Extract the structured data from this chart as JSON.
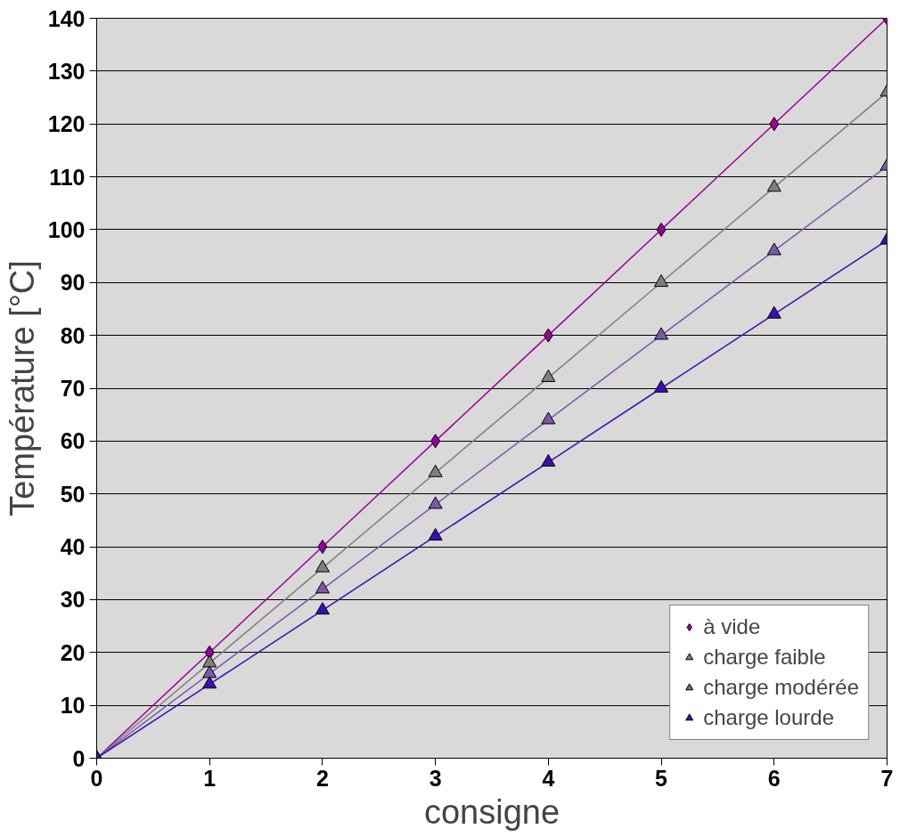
{
  "chart_data": {
    "type": "line",
    "xlabel": "consigne",
    "ylabel": "Température [°C]",
    "x": [
      0,
      1,
      2,
      3,
      4,
      5,
      6,
      7
    ],
    "series": [
      {
        "name": "à vide",
        "color": "#990099",
        "marker": "diamond",
        "values": [
          0,
          20,
          40,
          60,
          80,
          100,
          120,
          140
        ]
      },
      {
        "name": "charge faible",
        "color": "#7f7f7f",
        "marker": "triangle",
        "values": [
          0,
          18,
          36,
          54,
          72,
          90,
          108,
          126
        ]
      },
      {
        "name": "charge modérée",
        "color": "#7a5aa8",
        "marker": "triangle",
        "values": [
          0,
          16,
          32,
          48,
          64,
          80,
          96,
          112
        ]
      },
      {
        "name": "charge lourde",
        "color": "#3a10b0",
        "marker": "triangle",
        "values": [
          0,
          14,
          28,
          42,
          56,
          70,
          84,
          98
        ]
      }
    ],
    "xlim": [
      0,
      7
    ],
    "xticks": [
      0,
      1,
      2,
      3,
      4,
      5,
      6,
      7
    ],
    "ylim": [
      0,
      140
    ],
    "yticks": [
      0,
      10,
      20,
      30,
      40,
      50,
      60,
      70,
      80,
      90,
      100,
      110,
      120,
      130,
      140
    ],
    "grid": "y",
    "legend": "bottom right",
    "line_style": "solid"
  }
}
